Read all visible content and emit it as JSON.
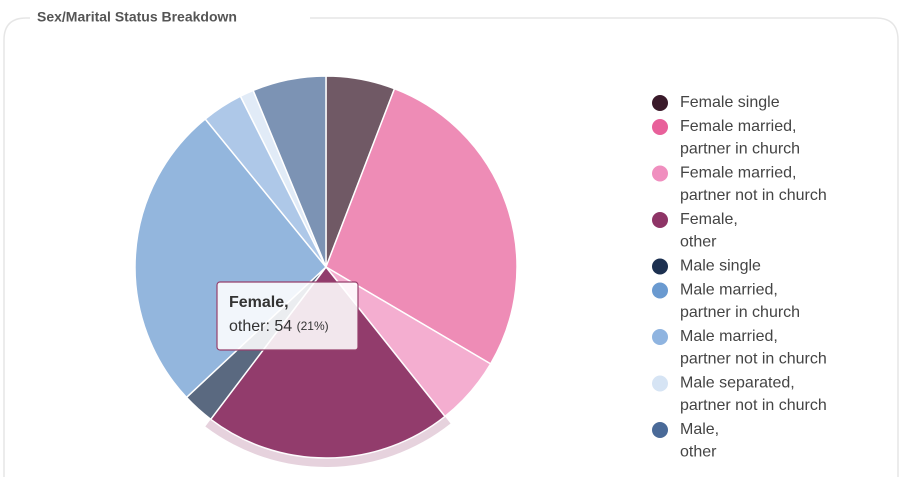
{
  "chart_data": {
    "type": "pie",
    "title": "Sex/Marital Status Breakdown",
    "categories": [
      "Female single",
      "Female married, partner in church",
      "Female married, partner not in church",
      "Female, other",
      "Male single",
      "Male married, partner in church",
      "Male married, partner not in church",
      "Male separated, partner not in church",
      "Male, other"
    ],
    "values": [
      15,
      71,
      15,
      54,
      7,
      67,
      9,
      3,
      16
    ],
    "colors": [
      "#3a1a2a",
      "#e8609a",
      "#f08fbf",
      "#8e3466",
      "#1c3050",
      "#6a9ad0",
      "#8fb4e0",
      "#d6e4f4",
      "#4a6a98"
    ],
    "tooltip": {
      "title": "Female,",
      "label": "other:",
      "value": 54,
      "percent": "(21%)"
    }
  }
}
